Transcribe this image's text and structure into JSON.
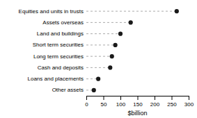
{
  "chart_data": {
    "type": "lollipop",
    "orientation": "horizontal",
    "categories": [
      "Other assets",
      "Loans and placements",
      "Cash and deposits",
      "Long term securities",
      "Short term securities",
      "Land and buildings",
      "Assets overseas",
      "Equities and units in trusts"
    ],
    "values": [
      22,
      35,
      70,
      75,
      85,
      100,
      130,
      265
    ],
    "color": "#1a1a1a",
    "line_style": "dashed",
    "marker": "circle",
    "xlabel": "$billion",
    "xlim": [
      0,
      300
    ],
    "xticks": [
      0,
      50,
      100,
      150,
      200,
      250,
      300
    ],
    "grid": false
  }
}
